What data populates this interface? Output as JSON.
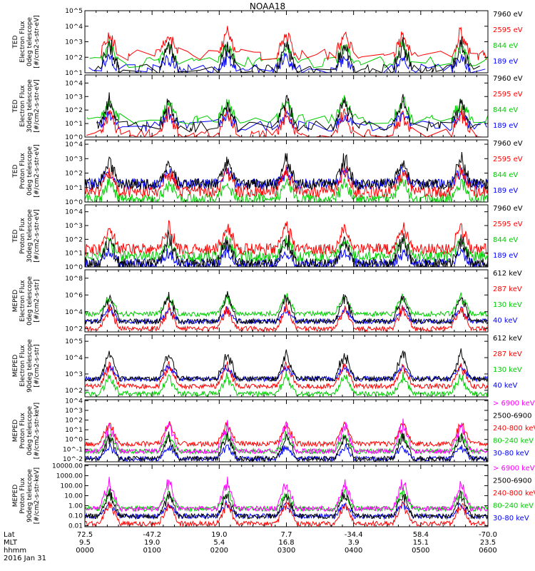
{
  "title": "NOAA18",
  "footer": {
    "row_labels": [
      "Lat",
      "MLT",
      "hhmm"
    ],
    "date": "2016 Jan 31",
    "columns": [
      {
        "lat": "72.5",
        "mlt": "9.5",
        "hhmm": "0000"
      },
      {
        "lat": "-47.2",
        "mlt": "19.0",
        "hhmm": "0100"
      },
      {
        "lat": "19.0",
        "mlt": "5.4",
        "hhmm": "0200"
      },
      {
        "lat": "7.7",
        "mlt": "16.8",
        "hhmm": "0300"
      },
      {
        "lat": "-34.4",
        "mlt": "3.9",
        "hhmm": "0400"
      },
      {
        "lat": "58.4",
        "mlt": "15.1",
        "hhmm": "0500"
      },
      {
        "lat": "-70.0",
        "mlt": "23.5",
        "hhmm": "0600"
      }
    ]
  },
  "chart_data": {
    "type": "line",
    "x_range_minutes": [
      0,
      360
    ],
    "x_tick_labels": [
      "0000",
      "0100",
      "0200",
      "0300",
      "0400",
      "0500",
      "0600"
    ],
    "panels": [
      {
        "ylabel": [
          "TED",
          "Electron Flux",
          "0deg telescope",
          "[#/cm2-s-str-eV]"
        ],
        "yticks": [
          "10^1",
          "10^2",
          "10^3",
          "10^4",
          "10^5"
        ],
        "log_range": [
          1,
          5
        ],
        "channels": [
          {
            "name": "7960 eV",
            "color": "#000000"
          },
          {
            "name": "2595 eV",
            "color": "#ff0000"
          },
          {
            "name": "844 eV",
            "color": "#00cc00"
          },
          {
            "name": "189 eV",
            "color": "#0000ff"
          }
        ]
      },
      {
        "ylabel": [
          "TED",
          "Electron Flux",
          "30deg telescope",
          "[#/cm2-s-str-eV]"
        ],
        "yticks": [
          "10^0",
          "10^1",
          "10^2",
          "10^3",
          "10^4"
        ],
        "log_range": [
          0,
          4.6
        ],
        "channels": [
          {
            "name": "7960 eV",
            "color": "#000000"
          },
          {
            "name": "2595 eV",
            "color": "#ff0000"
          },
          {
            "name": "844 eV",
            "color": "#00cc00"
          },
          {
            "name": "189 eV",
            "color": "#0000ff"
          }
        ]
      },
      {
        "ylabel": [
          "TED",
          "Proton Flux",
          "0deg telescope",
          "[#/cm2-s-str-eV]"
        ],
        "yticks": [
          "10^0",
          "10^1",
          "10^2",
          "10^3",
          "10^4"
        ],
        "log_range": [
          0,
          4.3
        ],
        "channels": [
          {
            "name": "7960 eV",
            "color": "#000000"
          },
          {
            "name": "2595 eV",
            "color": "#ff0000"
          },
          {
            "name": "844 eV",
            "color": "#00cc00"
          },
          {
            "name": "189 eV",
            "color": "#0000ff"
          }
        ]
      },
      {
        "ylabel": [
          "TED",
          "Proton Flux",
          "30deg telescope",
          "[#/cm2-s-str-eV]"
        ],
        "yticks": [
          "10^0",
          "10^1",
          "10^2",
          "10^3",
          "10^4"
        ],
        "log_range": [
          0,
          4.5
        ],
        "channels": [
          {
            "name": "7960 eV",
            "color": "#000000"
          },
          {
            "name": "2595 eV",
            "color": "#ff0000"
          },
          {
            "name": "844 eV",
            "color": "#00cc00"
          },
          {
            "name": "189 eV",
            "color": "#0000ff"
          }
        ]
      },
      {
        "ylabel": [
          "MEPED",
          "Electron Flux",
          "0deg telescope",
          "[#/cm2-s-str]"
        ],
        "yticks": [
          "10^2",
          "10^4",
          "10^6",
          "10^8"
        ],
        "log_range": [
          1.6,
          9
        ],
        "channels": [
          {
            "name": "612 keV",
            "color": "#000000"
          },
          {
            "name": "287 keV",
            "color": "#ff0000"
          },
          {
            "name": "130 keV",
            "color": "#00cc00"
          },
          {
            "name": "40 keV",
            "color": "#0000ff"
          }
        ]
      },
      {
        "ylabel": [
          "MEPED",
          "Electron Flux",
          "90deg telescope",
          "[#/cm2-s-str]"
        ],
        "yticks": [
          "10^2",
          "10^3",
          "10^4",
          "10^5"
        ],
        "log_range": [
          1.6,
          5.4
        ],
        "channels": [
          {
            "name": "612 keV",
            "color": "#000000"
          },
          {
            "name": "287 keV",
            "color": "#ff0000"
          },
          {
            "name": "130 keV",
            "color": "#00cc00"
          },
          {
            "name": "40 keV",
            "color": "#0000ff"
          }
        ]
      },
      {
        "ylabel": [
          "MEPED",
          "Proton Flux",
          "0deg telescope",
          "[#/cm2-s-str-keV]"
        ],
        "yticks": [
          "10^-2",
          "10^-1",
          "10^0",
          "10^1",
          "10^2",
          "10^3",
          "10^4"
        ],
        "log_range": [
          -2.3,
          4.1
        ],
        "channels": [
          {
            "name": "> 6900 keV",
            "color": "#ff00ff"
          },
          {
            "name": "2500-6900",
            "color": "#000000"
          },
          {
            "name": "240-800 keV",
            "color": "#ff0000"
          },
          {
            "name": "80-240 keV",
            "color": "#00cc00"
          },
          {
            "name": "30-80 keV",
            "color": "#0000ff"
          }
        ]
      },
      {
        "ylabel": [
          "MEPED",
          "Proton Flux",
          "90deg telescope",
          "[#/cm2-s-str-keV]"
        ],
        "yticks": [
          "0.01",
          "0.10",
          "1.00",
          "10.00",
          "100.00",
          "1000.00",
          "10000.00"
        ],
        "log_range": [
          -2.1,
          4.1
        ],
        "channels": [
          {
            "name": "> 6900 keV",
            "color": "#ff00ff"
          },
          {
            "name": "2500-6900",
            "color": "#000000"
          },
          {
            "name": "240-800 keV",
            "color": "#ff0000"
          },
          {
            "name": "80-240 keV",
            "color": "#00cc00"
          },
          {
            "name": "30-80 keV",
            "color": "#0000ff"
          }
        ]
      }
    ]
  }
}
